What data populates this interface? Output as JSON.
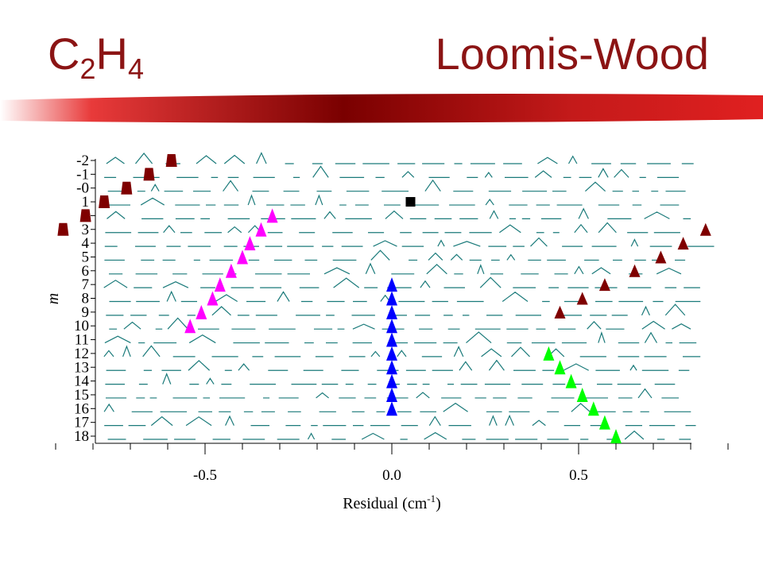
{
  "slide": {
    "title_left_main": "C",
    "title_left_sub1": "2",
    "title_left_mid": "H",
    "title_left_sub2": "4",
    "title_right": "Loomis-Wood"
  },
  "colors": {
    "title": "#8b1414",
    "banner_dark": "#7a0000",
    "banner_light": "#ffffff",
    "spectrum_trace": "#1a7a7a",
    "series_dark_red": "#7f0000",
    "series_magenta": "#ff00ff",
    "series_blue": "#0000ff",
    "series_green": "#00ff00",
    "series_black": "#000000"
  },
  "chart_data": {
    "type": "scatter",
    "subtype": "loomis-wood",
    "xlabel": "Residual (cm",
    "xlabel_sup": "-1",
    "xlabel_end": ")",
    "ylabel": "m",
    "xlim": [
      -0.93,
      0.93
    ],
    "x_ticks": [
      -0.5,
      0.0,
      0.5
    ],
    "x_tick_labels": [
      "-0.5",
      "0.0",
      "0.5"
    ],
    "x_minor_tick_step": 0.1,
    "y_tick_labels": [
      "-2",
      "-1",
      "-0",
      "1",
      "2",
      "3",
      "4",
      "5",
      "6",
      "7",
      "8",
      "9",
      "10",
      "11",
      "12",
      "13",
      "14",
      "15",
      "16",
      "17",
      "18"
    ],
    "grid": false,
    "legend": "none",
    "series": [
      {
        "color_key": "series_dark_red",
        "marker": "trapezoid",
        "points": [
          [
            -0.59,
            -2
          ],
          [
            -0.65,
            -1
          ],
          [
            -0.71,
            0
          ],
          [
            -0.77,
            1
          ],
          [
            -0.82,
            2
          ],
          [
            -0.88,
            3
          ]
        ]
      },
      {
        "color_key": "series_dark_red",
        "marker": "triangle",
        "points": [
          [
            0.84,
            3
          ],
          [
            0.78,
            4
          ],
          [
            0.72,
            5
          ],
          [
            0.65,
            6
          ],
          [
            0.57,
            7
          ],
          [
            0.51,
            8
          ],
          [
            0.45,
            9
          ]
        ]
      },
      {
        "color_key": "series_magenta",
        "marker": "triangle",
        "points": [
          [
            -0.32,
            2
          ],
          [
            -0.35,
            3
          ],
          [
            -0.38,
            4
          ],
          [
            -0.4,
            5
          ],
          [
            -0.43,
            6
          ],
          [
            -0.46,
            7
          ],
          [
            -0.48,
            8
          ],
          [
            -0.51,
            9
          ],
          [
            -0.54,
            10
          ]
        ]
      },
      {
        "color_key": "series_blue",
        "marker": "triangle",
        "points": [
          [
            0.0,
            7
          ],
          [
            0.0,
            8
          ],
          [
            0.0,
            9
          ],
          [
            0.0,
            10
          ],
          [
            0.0,
            11
          ],
          [
            0.0,
            12
          ],
          [
            0.0,
            13
          ],
          [
            0.0,
            14
          ],
          [
            0.0,
            15
          ],
          [
            0.0,
            16
          ]
        ]
      },
      {
        "color_key": "series_green",
        "marker": "triangle",
        "points": [
          [
            0.42,
            12
          ],
          [
            0.45,
            13
          ],
          [
            0.48,
            14
          ],
          [
            0.51,
            15
          ],
          [
            0.54,
            16
          ],
          [
            0.57,
            17
          ],
          [
            0.6,
            18
          ]
        ]
      },
      {
        "color_key": "series_black",
        "marker": "square",
        "points": [
          [
            0.05,
            1
          ]
        ]
      }
    ]
  }
}
